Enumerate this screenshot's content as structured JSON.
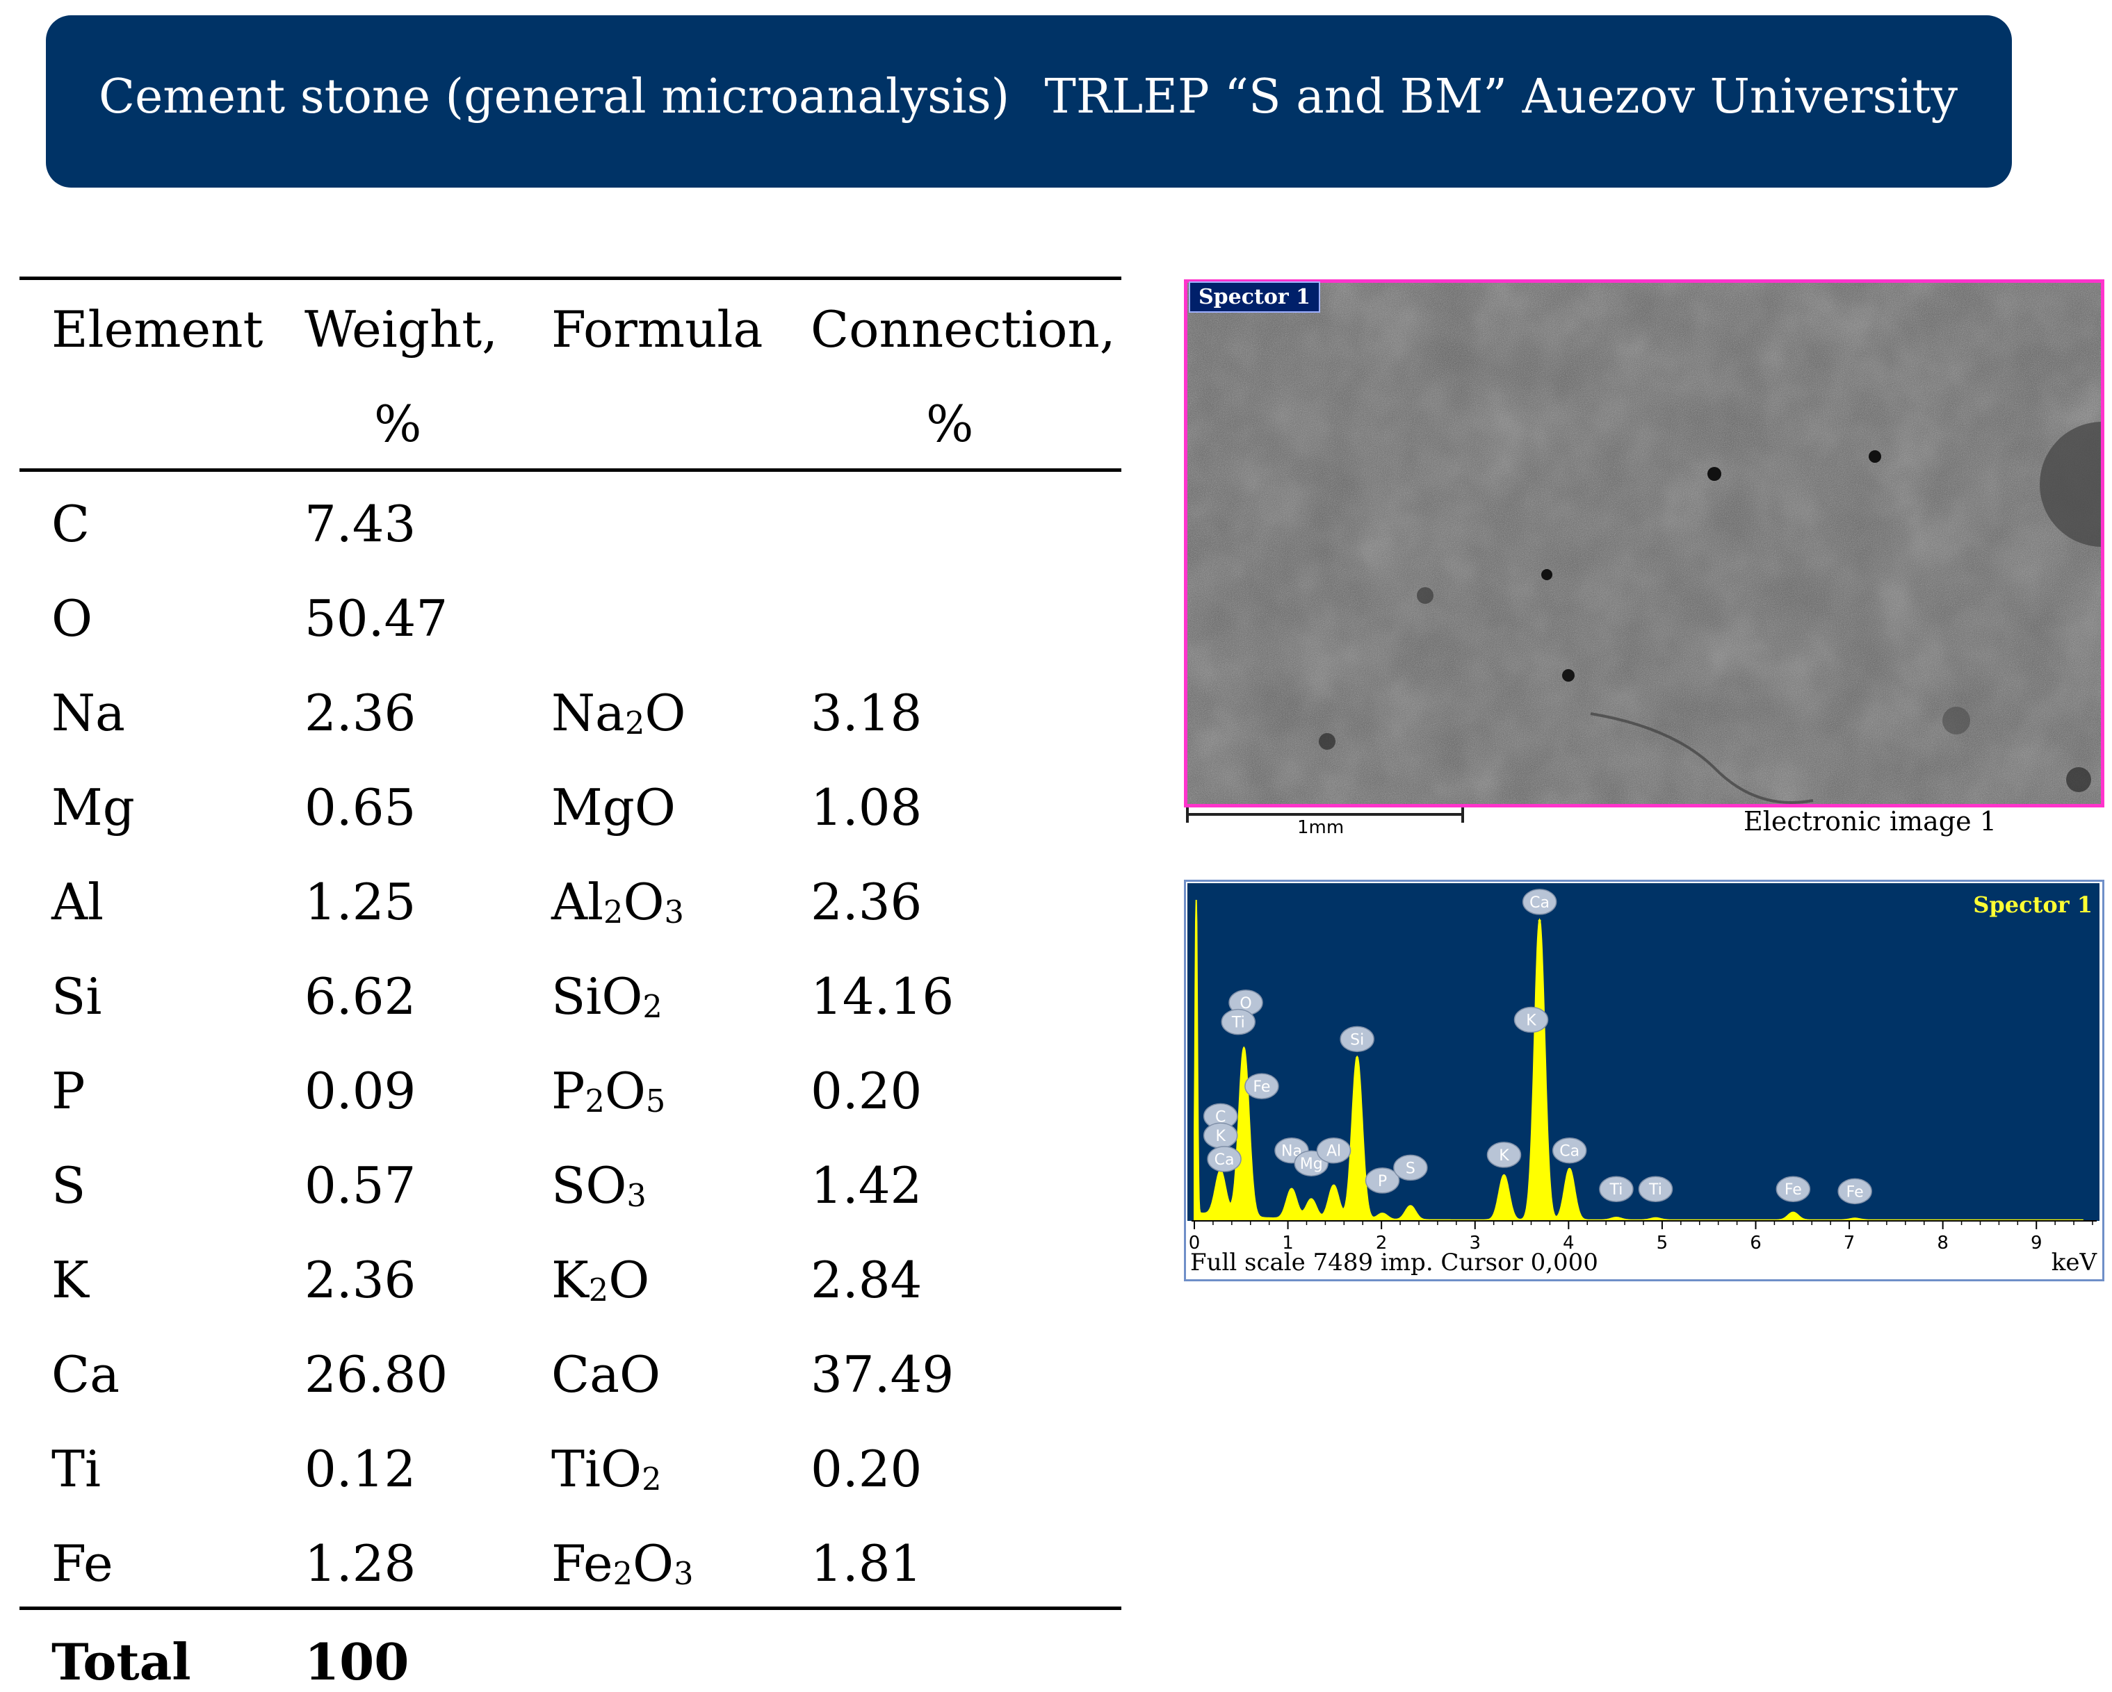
{
  "banner": {
    "left": "Cement stone (general microanalysis)",
    "right": "TRLEP “S and BM” Auezov University"
  },
  "table": {
    "headers": {
      "element": "Element",
      "weight_line1": "Weight,",
      "weight_line2": "%",
      "formula": "Formula",
      "connection_line1": "Connection,",
      "connection_line2": "%"
    },
    "rows": [
      {
        "element": "C",
        "weight": "7.43",
        "formula": [],
        "connection": ""
      },
      {
        "element": "O",
        "weight": "50.47",
        "formula": [],
        "connection": ""
      },
      {
        "element": "Na",
        "weight": "2.36",
        "formula": [
          [
            "Na",
            0
          ],
          [
            "2",
            1
          ],
          [
            "O",
            0
          ]
        ],
        "connection": "3.18"
      },
      {
        "element": "Mg",
        "weight": "0.65",
        "formula": [
          [
            "MgO",
            0
          ]
        ],
        "connection": "1.08"
      },
      {
        "element": "Al",
        "weight": "1.25",
        "formula": [
          [
            "Al",
            0
          ],
          [
            "2",
            1
          ],
          [
            "O",
            0
          ],
          [
            "3",
            1
          ]
        ],
        "connection": "2.36"
      },
      {
        "element": "Si",
        "weight": "6.62",
        "formula": [
          [
            "SiO",
            0
          ],
          [
            "2",
            1
          ]
        ],
        "connection": "14.16"
      },
      {
        "element": "P",
        "weight": "0.09",
        "formula": [
          [
            "P",
            0
          ],
          [
            "2",
            1
          ],
          [
            "O",
            0
          ],
          [
            "5",
            1
          ]
        ],
        "connection": "0.20"
      },
      {
        "element": "S",
        "weight": "0.57",
        "formula": [
          [
            "SO",
            0
          ],
          [
            "3",
            1
          ]
        ],
        "connection": "1.42"
      },
      {
        "element": "K",
        "weight": "2.36",
        "formula": [
          [
            "K",
            0
          ],
          [
            "2",
            1
          ],
          [
            "O",
            0
          ]
        ],
        "connection": "2.84"
      },
      {
        "element": "Ca",
        "weight": "26.80",
        "formula": [
          [
            "CaO",
            0
          ]
        ],
        "connection": "37.49"
      },
      {
        "element": "Ti",
        "weight": "0.12",
        "formula": [
          [
            "TiO",
            0
          ],
          [
            "2",
            1
          ]
        ],
        "connection": "0.20"
      },
      {
        "element": "Fe",
        "weight": "1.28",
        "formula": [
          [
            "Fe",
            0
          ],
          [
            "2",
            1
          ],
          [
            "O",
            0
          ],
          [
            "3",
            1
          ]
        ],
        "connection": "1.81"
      }
    ],
    "total": {
      "label": "Total",
      "value": "100"
    }
  },
  "sem_image": {
    "tag": "Spector 1",
    "scale_label": "1mm",
    "caption": "Electronic image 1",
    "colors": {
      "border": "#ff33cc",
      "surface": "#5a5a5a"
    }
  },
  "spectrum": {
    "title": "Spector 1",
    "footer": "Full scale 7489 imp. Cursor 0,000",
    "x_unit": "keV",
    "colors": {
      "background": "#003366",
      "trace": "#ffff00",
      "label_bubble": "#b8c4d6"
    },
    "chart_data": {
      "type": "line",
      "xlabel": "keV",
      "xlim": [
        0,
        9.5
      ],
      "x_ticks": [
        "0",
        "1",
        "2",
        "3",
        "4",
        "5",
        "6",
        "7",
        "8",
        "9"
      ],
      "ylim": [
        0,
        7489
      ],
      "peaks": [
        {
          "label": "C",
          "x": 0.28,
          "y": 1050
        },
        {
          "label": "O",
          "x": 0.53,
          "y": 3950
        },
        {
          "label": "Na",
          "x": 1.04,
          "y": 700
        },
        {
          "label": "Mg",
          "x": 1.25,
          "y": 470
        },
        {
          "label": "Al",
          "x": 1.49,
          "y": 800
        },
        {
          "label": "Si",
          "x": 1.74,
          "y": 3800
        },
        {
          "label": "P",
          "x": 2.01,
          "y": 150
        },
        {
          "label": "S",
          "x": 2.31,
          "y": 330
        },
        {
          "label": "K",
          "x": 3.31,
          "y": 1050
        },
        {
          "label": "Ca",
          "x": 3.69,
          "y": 7000
        },
        {
          "label": "Ca",
          "x": 4.01,
          "y": 1200
        },
        {
          "label": "Ti",
          "x": 4.51,
          "y": 60
        },
        {
          "label": "Ti",
          "x": 4.93,
          "y": 50
        },
        {
          "label": "Fe",
          "x": 6.4,
          "y": 180
        },
        {
          "label": "Fe",
          "x": 7.06,
          "y": 40
        }
      ],
      "labels": [
        {
          "label": "O",
          "x": 0.55,
          "y": 4800
        },
        {
          "label": "Ti",
          "x": 0.47,
          "y": 4350
        },
        {
          "label": "Fe",
          "x": 0.72,
          "y": 2850
        },
        {
          "label": "C",
          "x": 0.28,
          "y": 2150
        },
        {
          "label": "K",
          "x": 0.28,
          "y": 1700
        },
        {
          "label": "Ca",
          "x": 0.32,
          "y": 1150
        },
        {
          "label": "Na",
          "x": 1.04,
          "y": 1350
        },
        {
          "label": "Mg",
          "x": 1.25,
          "y": 1050
        },
        {
          "label": "Al",
          "x": 1.49,
          "y": 1350
        },
        {
          "label": "Si",
          "x": 1.74,
          "y": 3950
        },
        {
          "label": "P",
          "x": 2.01,
          "y": 650
        },
        {
          "label": "S",
          "x": 2.31,
          "y": 950
        },
        {
          "label": "K",
          "x": 3.31,
          "y": 1250
        },
        {
          "label": "K",
          "x": 3.6,
          "y": 4400
        },
        {
          "label": "Ca",
          "x": 3.69,
          "y": 7150
        },
        {
          "label": "Ca",
          "x": 4.01,
          "y": 1350
        },
        {
          "label": "Ti",
          "x": 4.51,
          "y": 450
        },
        {
          "label": "Ti",
          "x": 4.93,
          "y": 450
        },
        {
          "label": "Fe",
          "x": 6.4,
          "y": 450
        },
        {
          "label": "Fe",
          "x": 7.06,
          "y": 400
        }
      ]
    }
  }
}
